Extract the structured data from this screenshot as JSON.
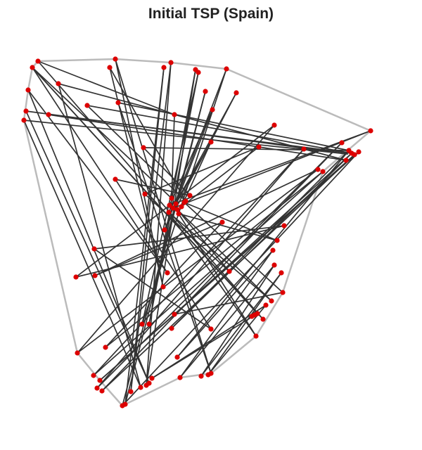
{
  "chart_data": {
    "type": "scatter",
    "title": "Initial TSP (Spain)",
    "xlabel": "",
    "ylabel": "",
    "grid": false,
    "axes_visible": false,
    "colors": {
      "city": "#dd0000",
      "route": "#333333",
      "hull": "#bbbbbb"
    },
    "cities": [
      [
        54,
        87
      ],
      [
        46,
        96
      ],
      [
        40,
        128
      ],
      [
        37,
        158
      ],
      [
        34,
        171
      ],
      [
        83,
        119
      ],
      [
        69,
        163
      ],
      [
        124,
        150
      ],
      [
        156,
        96
      ],
      [
        164,
        84
      ],
      [
        168,
        146
      ],
      [
        204,
        210
      ],
      [
        164,
        255
      ],
      [
        134,
        354
      ],
      [
        108,
        394
      ],
      [
        110,
        502
      ],
      [
        135,
        392
      ],
      [
        150,
        494
      ],
      [
        133,
        534
      ],
      [
        138,
        552
      ],
      [
        145,
        556
      ],
      [
        142,
        541
      ],
      [
        174,
        577
      ],
      [
        178,
        575
      ],
      [
        186,
        557
      ],
      [
        200,
        551
      ],
      [
        208,
        548
      ],
      [
        212,
        545
      ],
      [
        216,
        538
      ],
      [
        212,
        461
      ],
      [
        202,
        461
      ],
      [
        232,
        408
      ],
      [
        238,
        388
      ],
      [
        234,
        327
      ],
      [
        246,
        296
      ],
      [
        241,
        292
      ],
      [
        250,
        290
      ],
      [
        258,
        294
      ],
      [
        244,
        282
      ],
      [
        270,
        278
      ],
      [
        262,
        288
      ],
      [
        254,
        304
      ],
      [
        252,
        298
      ],
      [
        240,
        302
      ],
      [
        264,
        286
      ],
      [
        206,
        276
      ],
      [
        233,
        96
      ],
      [
        243,
        89
      ],
      [
        278,
        99
      ],
      [
        282,
        103
      ],
      [
        322,
        98
      ],
      [
        292,
        130
      ],
      [
        302,
        156
      ],
      [
        336,
        132
      ],
      [
        248,
        163
      ],
      [
        390,
        178
      ],
      [
        300,
        202
      ],
      [
        368,
        209
      ],
      [
        432,
        212
      ],
      [
        452,
        241
      ],
      [
        459,
        244
      ],
      [
        486,
        203
      ],
      [
        496,
        214
      ],
      [
        504,
        220
      ],
      [
        492,
        228
      ],
      [
        500,
        218
      ],
      [
        510,
        216
      ],
      [
        527,
        186
      ],
      [
        316,
        316
      ],
      [
        404,
        321
      ],
      [
        394,
        342
      ],
      [
        388,
        356
      ],
      [
        390,
        377
      ],
      [
        400,
        388
      ],
      [
        326,
        386
      ],
      [
        402,
        416
      ],
      [
        386,
        428
      ],
      [
        378,
        434
      ],
      [
        366,
        446
      ],
      [
        374,
        454
      ],
      [
        362,
        448
      ],
      [
        358,
        450
      ],
      [
        364,
        478
      ],
      [
        248,
        447
      ],
      [
        244,
        467
      ],
      [
        252,
        508
      ],
      [
        256,
        537
      ],
      [
        286,
        535
      ],
      [
        296,
        533
      ],
      [
        300,
        531
      ],
      [
        300,
        468
      ]
    ],
    "hull": [
      [
        54,
        87
      ],
      [
        164,
        84
      ],
      [
        243,
        89
      ],
      [
        322,
        98
      ],
      [
        527,
        186
      ],
      [
        459,
        244
      ],
      [
        402,
        416
      ],
      [
        364,
        478
      ],
      [
        300,
        531
      ],
      [
        256,
        537
      ],
      [
        174,
        577
      ],
      [
        142,
        541
      ],
      [
        110,
        502
      ],
      [
        34,
        171
      ],
      [
        40,
        128
      ],
      [
        46,
        96
      ]
    ],
    "route": [
      [
        54,
        87
      ],
      [
        248,
        163
      ],
      [
        244,
        282
      ],
      [
        46,
        96
      ],
      [
        238,
        388
      ],
      [
        40,
        128
      ],
      [
        212,
        545
      ],
      [
        37,
        158
      ],
      [
        494,
        219
      ],
      [
        34,
        171
      ],
      [
        200,
        551
      ],
      [
        83,
        119
      ],
      [
        492,
        228
      ],
      [
        69,
        163
      ],
      [
        500,
        218
      ],
      [
        124,
        150
      ],
      [
        264,
        286
      ],
      [
        156,
        96
      ],
      [
        232,
        408
      ],
      [
        164,
        84
      ],
      [
        300,
        531
      ],
      [
        168,
        146
      ],
      [
        496,
        214
      ],
      [
        204,
        210
      ],
      [
        270,
        278
      ],
      [
        164,
        255
      ],
      [
        300,
        468
      ],
      [
        134,
        354
      ],
      [
        404,
        321
      ],
      [
        108,
        394
      ],
      [
        390,
        178
      ],
      [
        110,
        502
      ],
      [
        452,
        241
      ],
      [
        135,
        392
      ],
      [
        316,
        316
      ],
      [
        150,
        494
      ],
      [
        459,
        244
      ],
      [
        133,
        534
      ],
      [
        432,
        212
      ],
      [
        138,
        552
      ],
      [
        486,
        203
      ],
      [
        145,
        556
      ],
      [
        504,
        220
      ],
      [
        142,
        541
      ],
      [
        510,
        216
      ],
      [
        174,
        577
      ],
      [
        292,
        130
      ],
      [
        178,
        575
      ],
      [
        233,
        96
      ],
      [
        186,
        557
      ],
      [
        243,
        89
      ],
      [
        208,
        548
      ],
      [
        278,
        99
      ],
      [
        212,
        461
      ],
      [
        282,
        103
      ],
      [
        202,
        461
      ],
      [
        322,
        98
      ],
      [
        234,
        327
      ],
      [
        336,
        132
      ],
      [
        246,
        296
      ],
      [
        527,
        186
      ],
      [
        241,
        292
      ],
      [
        302,
        156
      ],
      [
        250,
        290
      ],
      [
        300,
        202
      ],
      [
        258,
        294
      ],
      [
        368,
        209
      ],
      [
        206,
        276
      ],
      [
        326,
        386
      ],
      [
        252,
        298
      ],
      [
        386,
        428
      ],
      [
        240,
        302
      ],
      [
        364,
        478
      ],
      [
        254,
        304
      ],
      [
        394,
        342
      ],
      [
        262,
        288
      ],
      [
        402,
        416
      ],
      [
        248,
        447
      ],
      [
        500,
        218
      ],
      [
        244,
        467
      ],
      [
        496,
        214
      ],
      [
        252,
        508
      ],
      [
        388,
        356
      ],
      [
        256,
        537
      ],
      [
        390,
        377
      ],
      [
        286,
        535
      ],
      [
        400,
        388
      ],
      [
        296,
        533
      ],
      [
        378,
        434
      ],
      [
        216,
        538
      ],
      [
        366,
        446
      ],
      [
        46,
        96
      ],
      [
        374,
        454
      ],
      [
        54,
        87
      ]
    ]
  }
}
